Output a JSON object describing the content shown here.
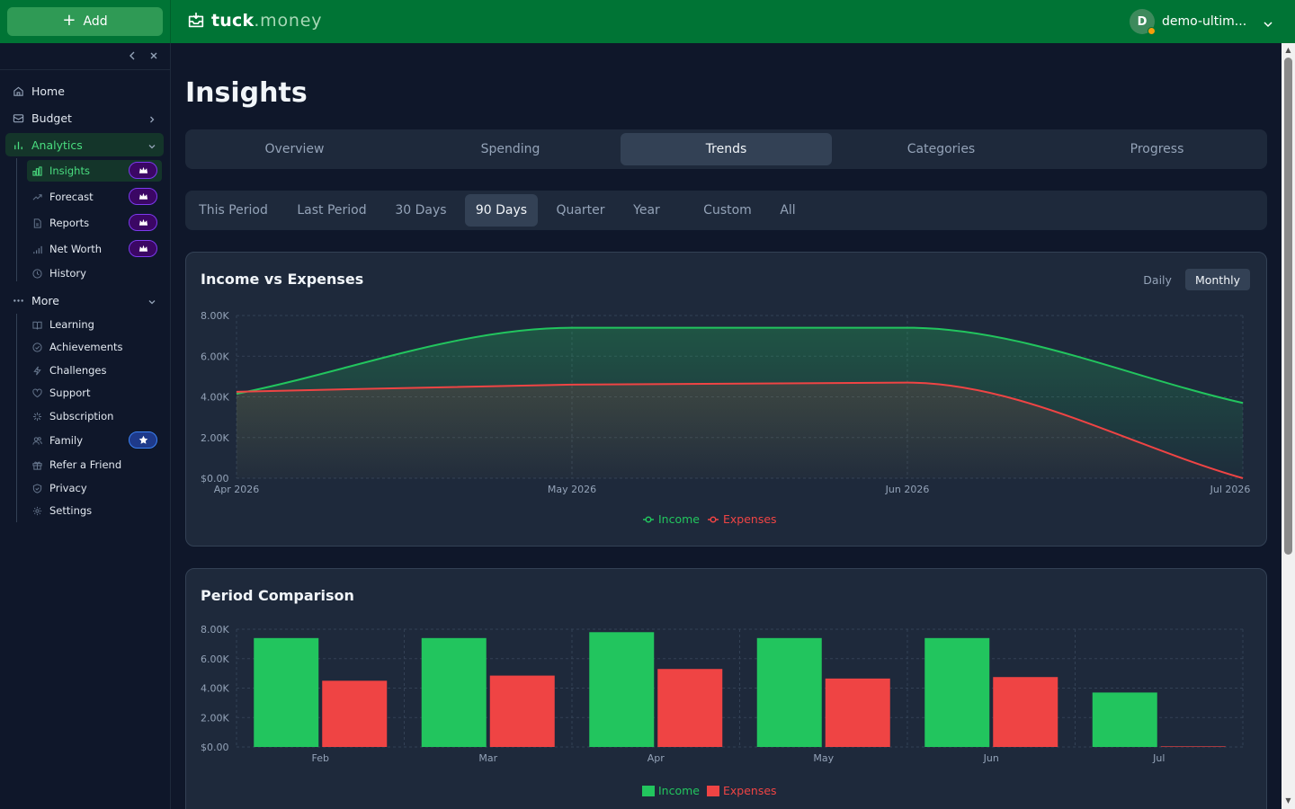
{
  "header": {
    "add_label": "Add",
    "brand_name": "tuck",
    "brand_suffix": ".money",
    "user_initial": "D",
    "user_name": "demo-ultim..."
  },
  "sidebar": {
    "items": [
      {
        "label": "Home",
        "icon": "home-icon"
      },
      {
        "label": "Budget",
        "icon": "wallet-icon"
      },
      {
        "label": "Analytics",
        "icon": "bar-chart-icon"
      },
      {
        "label": "More",
        "icon": "more-icon"
      }
    ],
    "analytics_items": [
      {
        "label": "Insights",
        "icon": "insights-icon",
        "badge": "crown"
      },
      {
        "label": "Forecast",
        "icon": "trend-up-icon",
        "badge": "crown"
      },
      {
        "label": "Reports",
        "icon": "document-icon",
        "badge": "crown"
      },
      {
        "label": "Net Worth",
        "icon": "signal-bars-icon",
        "badge": "crown"
      },
      {
        "label": "History",
        "icon": "clock-icon",
        "badge": ""
      }
    ],
    "more_items": [
      {
        "label": "Learning",
        "icon": "book-icon",
        "badge": ""
      },
      {
        "label": "Achievements",
        "icon": "check-circle-icon",
        "badge": ""
      },
      {
        "label": "Challenges",
        "icon": "lightning-icon",
        "badge": ""
      },
      {
        "label": "Support",
        "icon": "heart-icon",
        "badge": ""
      },
      {
        "label": "Subscription",
        "icon": "sparkle-icon",
        "badge": ""
      },
      {
        "label": "Family",
        "icon": "users-icon",
        "badge": "star"
      },
      {
        "label": "Refer a Friend",
        "icon": "gift-icon",
        "badge": ""
      },
      {
        "label": "Privacy",
        "icon": "shield-icon",
        "badge": ""
      },
      {
        "label": "Settings",
        "icon": "gear-icon",
        "badge": ""
      }
    ]
  },
  "page": {
    "title": "Insights",
    "tabs": [
      "Overview",
      "Spending",
      "Trends",
      "Categories",
      "Progress"
    ],
    "active_tab": "Trends",
    "periods": [
      "This Period",
      "Last Period",
      "30 Days",
      "90 Days",
      "Quarter",
      "Year",
      "Custom",
      "All"
    ],
    "active_period": "90 Days"
  },
  "colors": {
    "income": "#22c55e",
    "expenses": "#ef4444",
    "header_green": "#007435",
    "premium_purple": "#7c3aed"
  },
  "income_card": {
    "title": "Income vs Expenses",
    "toggle": [
      "Daily",
      "Monthly"
    ],
    "active_toggle": "Monthly"
  },
  "period_card": {
    "title": "Period Comparison"
  },
  "chart_data": [
    {
      "type": "area",
      "title": "Income vs Expenses",
      "x": [
        "Apr 2026",
        "May 2026",
        "Jun 2026",
        "Jul 2026"
      ],
      "series": [
        {
          "name": "Income",
          "values": [
            4150,
            7400,
            7400,
            3700
          ]
        },
        {
          "name": "Expenses",
          "values": [
            4250,
            4600,
            4700,
            0
          ]
        }
      ],
      "yticks": [
        "$0.00",
        "2.00K",
        "4.00K",
        "6.00K",
        "8.00K"
      ],
      "ylim": [
        0,
        8000
      ],
      "grid": true,
      "legend": "bottom-center"
    },
    {
      "type": "bar",
      "title": "Period Comparison",
      "categories": [
        "Feb",
        "Mar",
        "Apr",
        "May",
        "Jun",
        "Jul"
      ],
      "series": [
        {
          "name": "Income",
          "values": [
            7400,
            7400,
            7800,
            7400,
            7400,
            3700
          ]
        },
        {
          "name": "Expenses",
          "values": [
            4500,
            4850,
            5300,
            4650,
            4750,
            40
          ]
        }
      ],
      "yticks": [
        "$0.00",
        "2.00K",
        "4.00K",
        "6.00K",
        "8.00K"
      ],
      "ylim": [
        0,
        8000
      ],
      "grid": true,
      "legend": "bottom-center"
    }
  ]
}
